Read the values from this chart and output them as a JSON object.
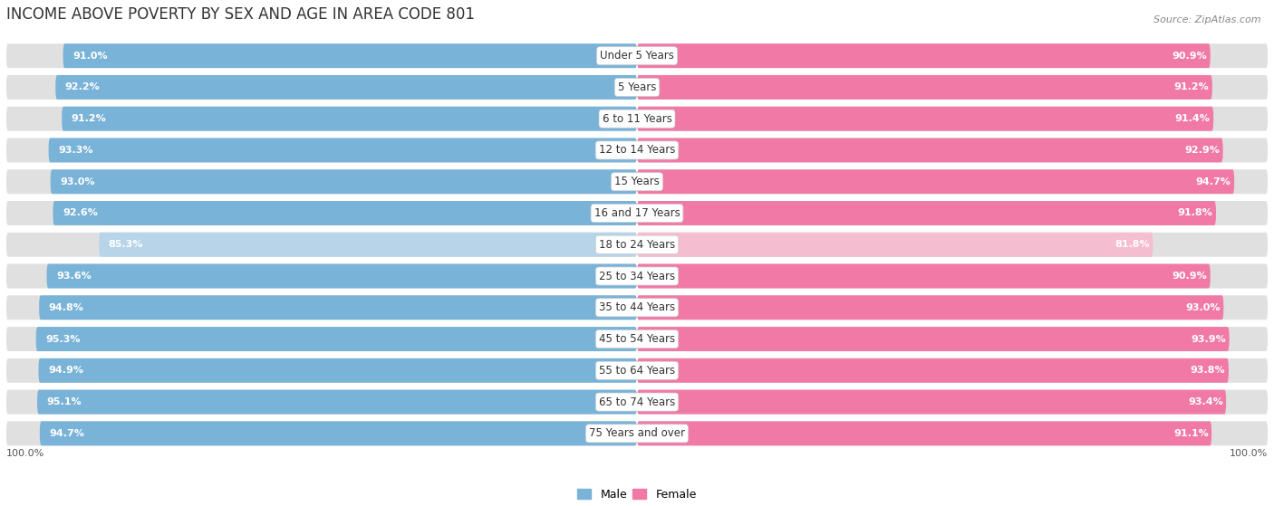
{
  "title": "INCOME ABOVE POVERTY BY SEX AND AGE IN AREA CODE 801",
  "source": "Source: ZipAtlas.com",
  "categories": [
    "Under 5 Years",
    "5 Years",
    "6 to 11 Years",
    "12 to 14 Years",
    "15 Years",
    "16 and 17 Years",
    "18 to 24 Years",
    "25 to 34 Years",
    "35 to 44 Years",
    "45 to 54 Years",
    "55 to 64 Years",
    "65 to 74 Years",
    "75 Years and over"
  ],
  "male_values": [
    91.0,
    92.2,
    91.2,
    93.3,
    93.0,
    92.6,
    85.3,
    93.6,
    94.8,
    95.3,
    94.9,
    95.1,
    94.7
  ],
  "female_values": [
    90.9,
    91.2,
    91.4,
    92.9,
    94.7,
    91.8,
    81.8,
    90.9,
    93.0,
    93.9,
    93.8,
    93.4,
    91.1
  ],
  "male_color": "#7ab3d8",
  "male_color_light": "#b8d4e8",
  "female_color": "#f07aa5",
  "female_color_light": "#f5bdd0",
  "background_color": "#ffffff",
  "row_bg_color": "#e0e0e0",
  "label_bg_color": "#ffffff",
  "max_value": 100.0,
  "title_fontsize": 12,
  "label_fontsize": 8.5,
  "value_fontsize": 8,
  "source_fontsize": 8
}
